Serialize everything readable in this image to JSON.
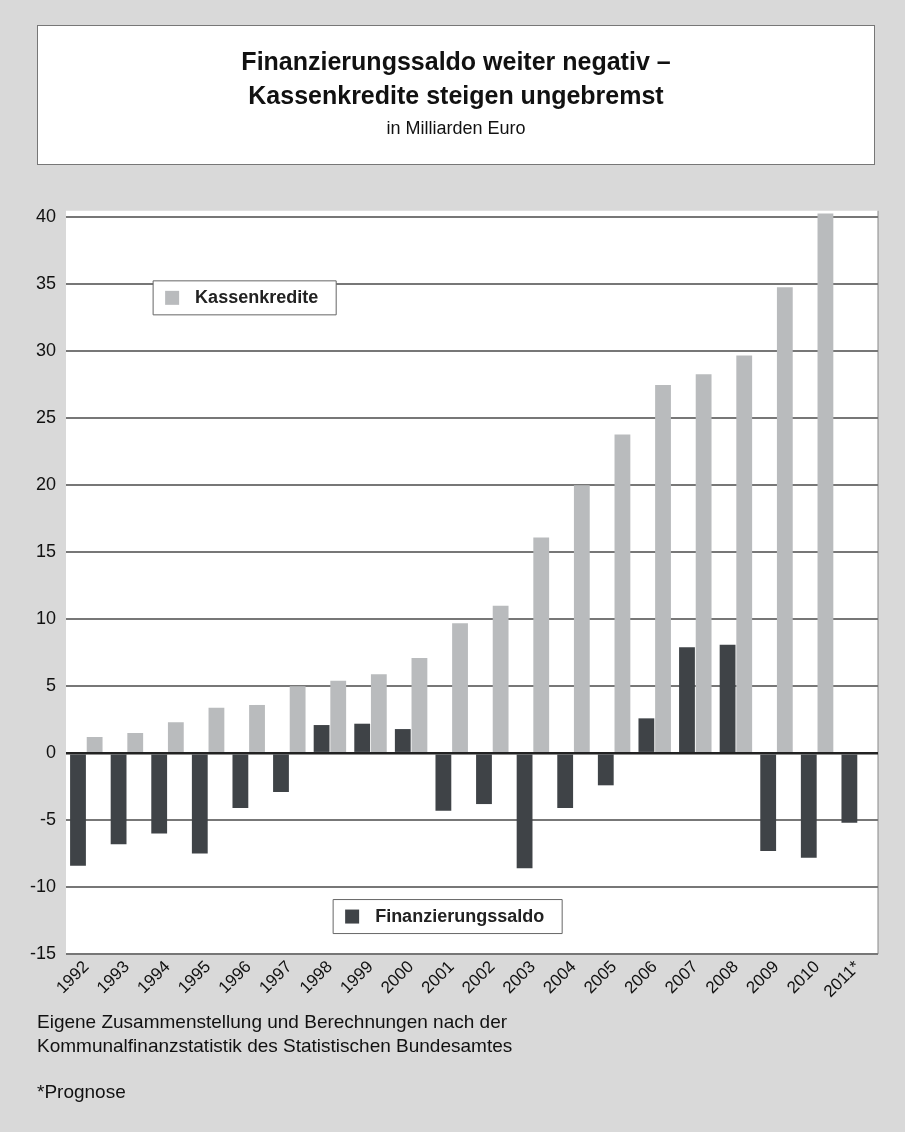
{
  "chart_data": {
    "type": "bar",
    "title": "Finanzierungssaldo weiter negativ –\nKassenkredite steigen ungebremst",
    "subtitle": "in Milliarden Euro",
    "categories": [
      "1992",
      "1993",
      "1994",
      "1995",
      "1996",
      "1997",
      "1998",
      "1999",
      "2000",
      "2001",
      "2002",
      "2003",
      "2004",
      "2005",
      "2006",
      "2007",
      "2008",
      "2009",
      "2010",
      "2011*"
    ],
    "series": [
      {
        "name": "Finanzierungssaldo",
        "color": "#3f4347",
        "values": [
          -8.4,
          -6.8,
          -6.0,
          -7.5,
          -4.1,
          -2.9,
          2.1,
          2.2,
          1.8,
          -4.3,
          -3.8,
          -8.6,
          -4.1,
          -2.4,
          2.6,
          7.9,
          8.1,
          -7.3,
          -7.8,
          -5.2
        ]
      },
      {
        "name": "Kassenkredite",
        "color": "#b9bbbd",
        "values": [
          1.2,
          1.5,
          2.3,
          3.4,
          3.6,
          5.0,
          5.4,
          5.9,
          7.1,
          9.7,
          11.0,
          16.1,
          20.0,
          23.8,
          27.5,
          28.3,
          29.7,
          34.8,
          40.3,
          null
        ]
      }
    ],
    "ylim": [
      -15,
      40.5
    ],
    "yticks": [
      -15,
      -10,
      -5,
      0,
      5,
      10,
      15,
      20,
      25,
      30,
      35,
      40
    ],
    "grid": "y",
    "legend": "bottom left",
    "annotations": [
      "Eigene Zusammenstellung und Berechnungen nach der Kommunalfinanzstatistik des Statistischen Bundesamtes",
      "*Prognose"
    ]
  }
}
